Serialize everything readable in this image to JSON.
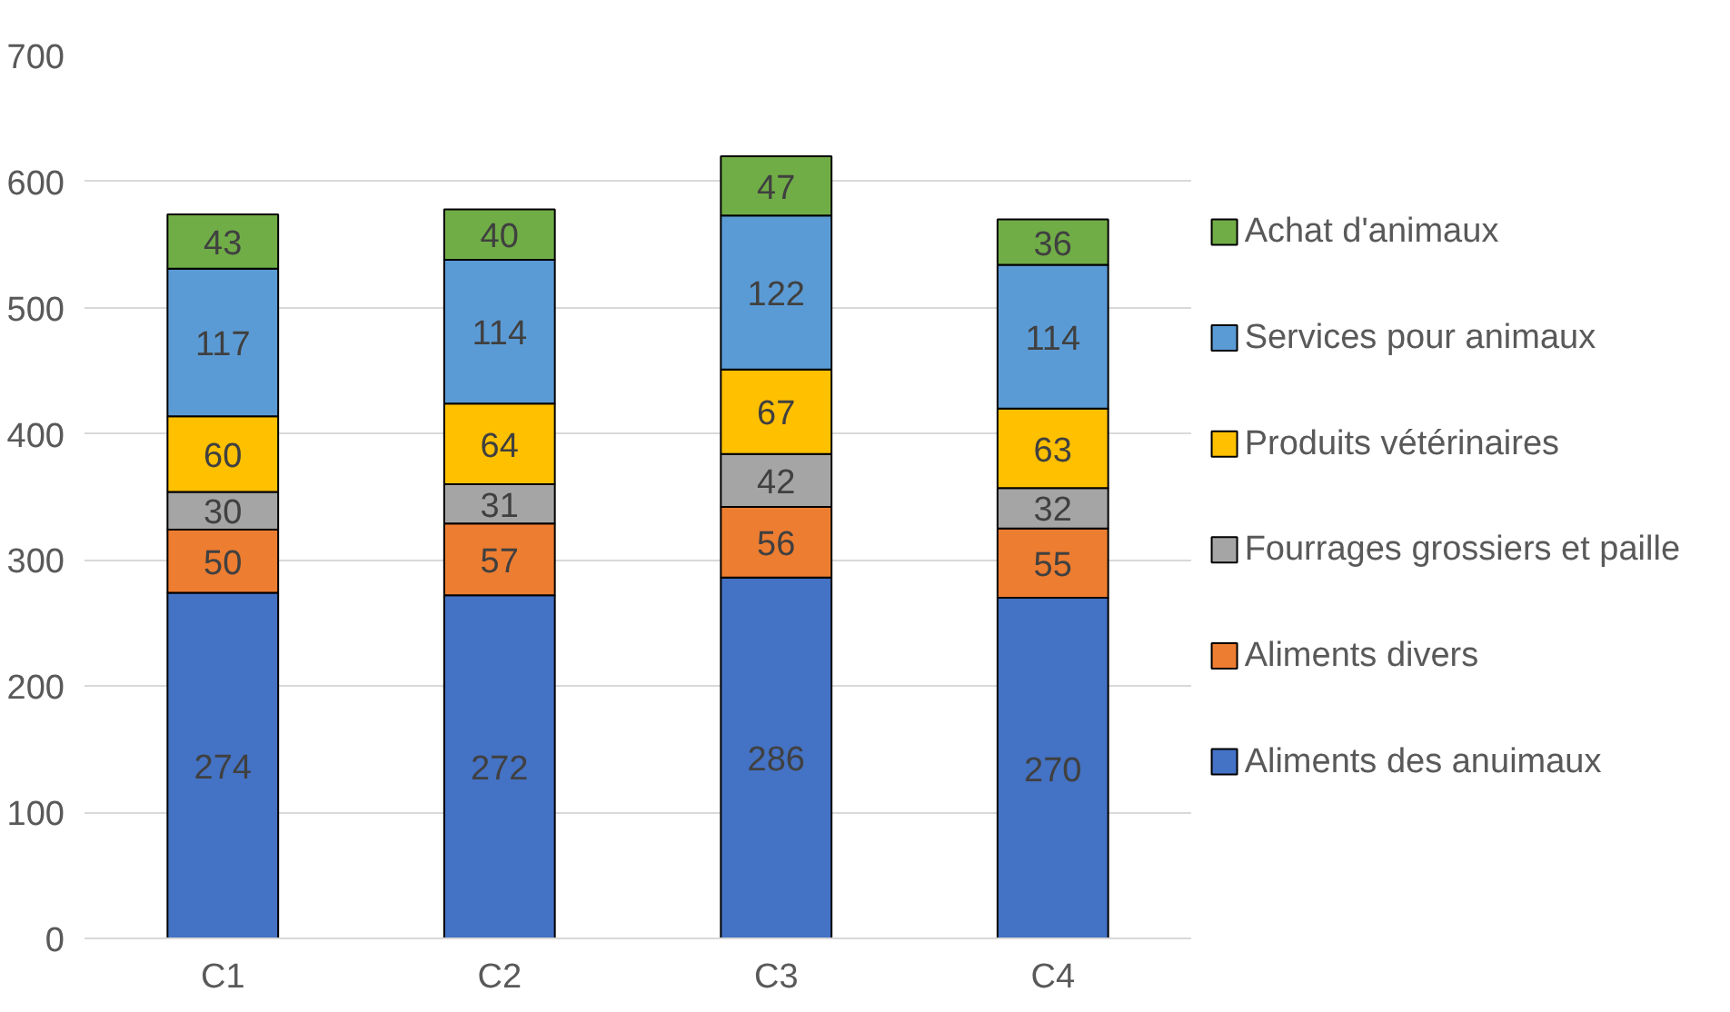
{
  "chart_data": {
    "type": "bar",
    "stacked": true,
    "categories": [
      "C1",
      "C2",
      "C3",
      "C4"
    ],
    "series": [
      {
        "name": "Aliments des anuimaux",
        "color": "#4472c4",
        "values": [
          274,
          272,
          286,
          270
        ]
      },
      {
        "name": "Aliments divers",
        "color": "#ed7d31",
        "values": [
          50,
          57,
          56,
          55
        ]
      },
      {
        "name": "Fourrages grossiers et paille",
        "color": "#a5a5a5",
        "values": [
          30,
          31,
          42,
          32
        ]
      },
      {
        "name": "Produits vétérinaires",
        "color": "#ffc000",
        "values": [
          60,
          64,
          67,
          63
        ]
      },
      {
        "name": "Services pour animaux",
        "color": "#5b9bd5",
        "values": [
          117,
          114,
          122,
          114
        ]
      },
      {
        "name": "Achat d'animaux",
        "color": "#70ad47",
        "values": [
          43,
          40,
          47,
          36
        ]
      }
    ],
    "ylim": [
      0,
      700
    ],
    "yticks": [
      0,
      100,
      200,
      300,
      400,
      500,
      600,
      700
    ],
    "grid": "y",
    "legend": "right",
    "data_labels": true
  }
}
